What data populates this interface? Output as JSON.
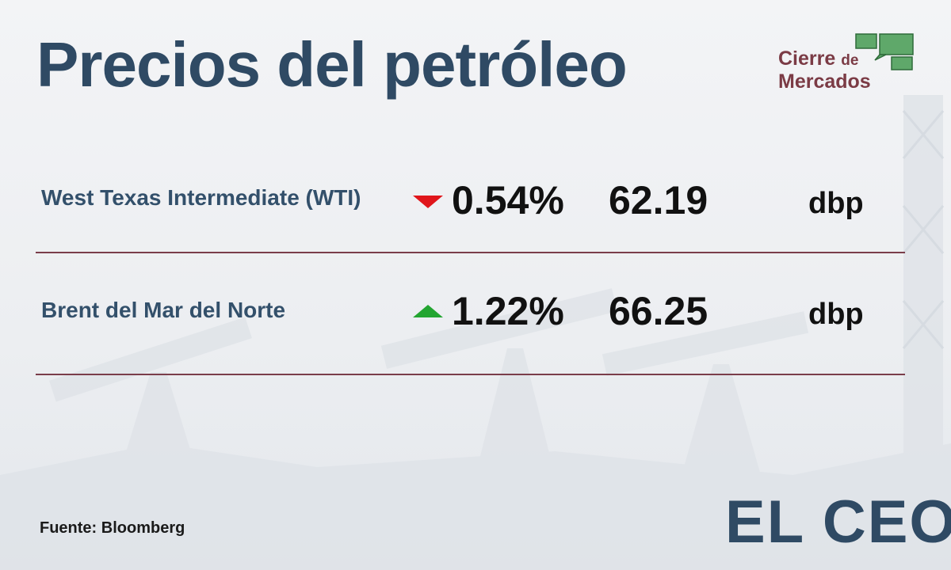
{
  "header": {
    "title": "Precios del petróleo",
    "logo": [
      "Cierre",
      "de",
      "Mercados"
    ]
  },
  "table": {
    "rows": [
      {
        "name": "West Texas Intermediate (WTI)",
        "change": "0.54%",
        "price": "62.19",
        "unit": "dbp"
      },
      {
        "name": "Brent del Mar del Norte",
        "change": "1.22%",
        "price": "66.25",
        "unit": "dbp"
      }
    ]
  },
  "footer": {
    "source": "Fuente: Bloomberg",
    "brand": "EL CEO"
  }
}
